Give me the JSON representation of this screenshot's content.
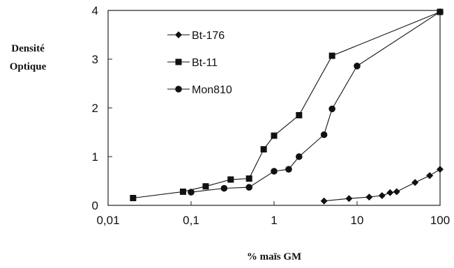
{
  "chart_data": {
    "type": "scatter",
    "xscale": "log",
    "xlim": [
      0.01,
      100
    ],
    "ylim": [
      0,
      4
    ],
    "xticks": [
      "0,01",
      "0,1",
      "1",
      "10",
      "100"
    ],
    "yticks": [
      "0",
      "1",
      "2",
      "3",
      "4"
    ],
    "xlabel": "% maïs GM",
    "ylabel_line1": "Densité",
    "ylabel_line2": "Optique",
    "legend_position": "top-left",
    "grid": false,
    "series": [
      {
        "name": "Bt-176",
        "marker": "diamond",
        "points": [
          [
            4,
            0.09
          ],
          [
            8,
            0.14
          ],
          [
            14,
            0.17
          ],
          [
            20,
            0.2
          ],
          [
            25,
            0.26
          ],
          [
            30,
            0.28
          ],
          [
            50,
            0.47
          ],
          [
            75,
            0.61
          ],
          [
            100,
            0.74
          ]
        ]
      },
      {
        "name": "Bt-11",
        "marker": "square",
        "points": [
          [
            0.02,
            0.15
          ],
          [
            0.08,
            0.28
          ],
          [
            0.15,
            0.39
          ],
          [
            0.3,
            0.53
          ],
          [
            0.5,
            0.55
          ],
          [
            0.75,
            1.15
          ],
          [
            1,
            1.43
          ],
          [
            2,
            1.85
          ],
          [
            5,
            3.07
          ],
          [
            100,
            3.97
          ]
        ]
      },
      {
        "name": "Mon810",
        "marker": "circle",
        "points": [
          [
            0.1,
            0.27
          ],
          [
            0.25,
            0.35
          ],
          [
            0.5,
            0.37
          ],
          [
            1,
            0.7
          ],
          [
            1.5,
            0.74
          ],
          [
            2,
            1.0
          ],
          [
            4,
            1.45
          ],
          [
            5,
            1.98
          ],
          [
            10,
            2.86
          ],
          [
            100,
            3.97
          ]
        ]
      }
    ],
    "colors": {
      "axis": "#222222",
      "series": "#111111"
    }
  }
}
